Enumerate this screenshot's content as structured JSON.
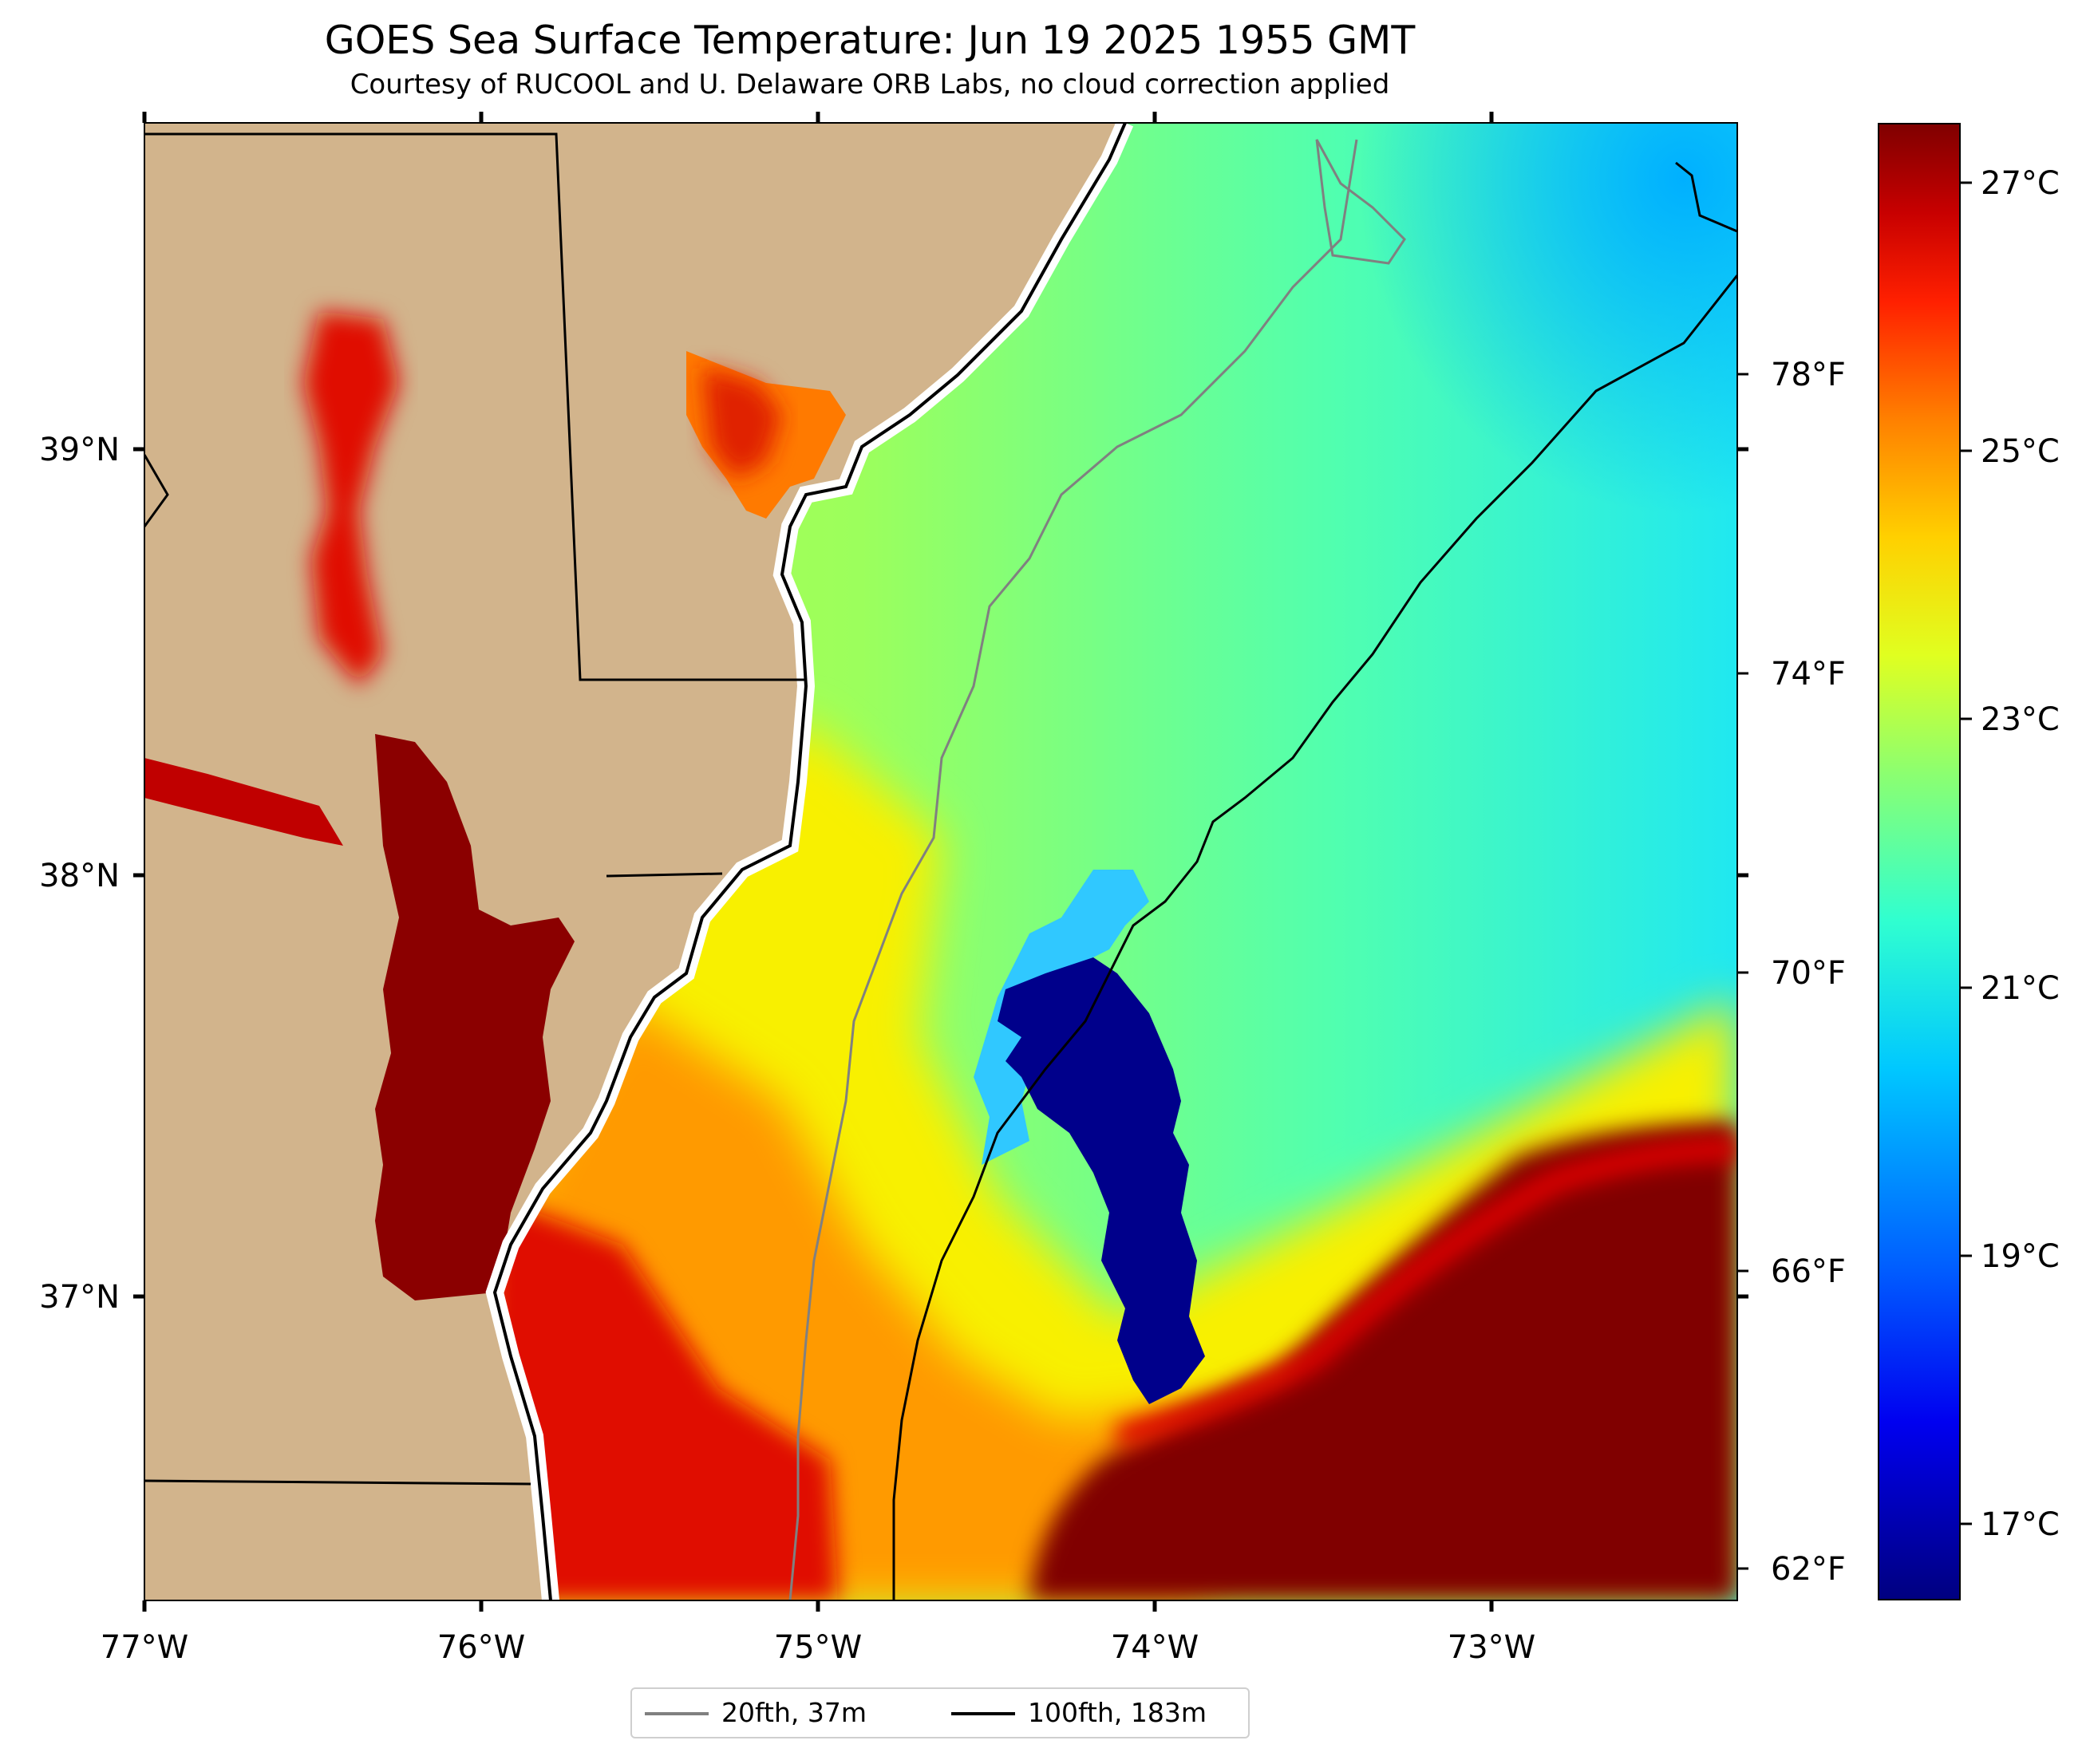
{
  "title": "GOES Sea Surface Temperature: Jun 19 2025 1955 GMT",
  "subtitle": "Courtesy of RUCOOL and U. Delaware ORB Labs, no cloud correction applied",
  "axes": {
    "x_ticks": [
      "77°W",
      "76°W",
      "75°W",
      "74°W",
      "73°W"
    ],
    "y_ticks": [
      "39°N",
      "38°N",
      "37°N"
    ]
  },
  "colorbar": {
    "celsius_ticks": [
      "27°C",
      "25°C",
      "23°C",
      "21°C",
      "19°C",
      "17°C"
    ],
    "fahrenheit_ticks": [
      "78°F",
      "74°F",
      "70°F",
      "66°F",
      "62°F"
    ],
    "colormap": "jet",
    "min_color": "#000080",
    "max_color": "#800000"
  },
  "legend": {
    "items": [
      {
        "label": "20fth, 37m",
        "color": "#808080"
      },
      {
        "label": "100fth, 183m",
        "color": "#000000"
      }
    ]
  },
  "colors": {
    "land": "#d2b48c",
    "warm_water": "#800000",
    "cold_eddy": "#00008b",
    "shelf_water": "#a0ff60",
    "offshore_water": "#30f0e0"
  }
}
